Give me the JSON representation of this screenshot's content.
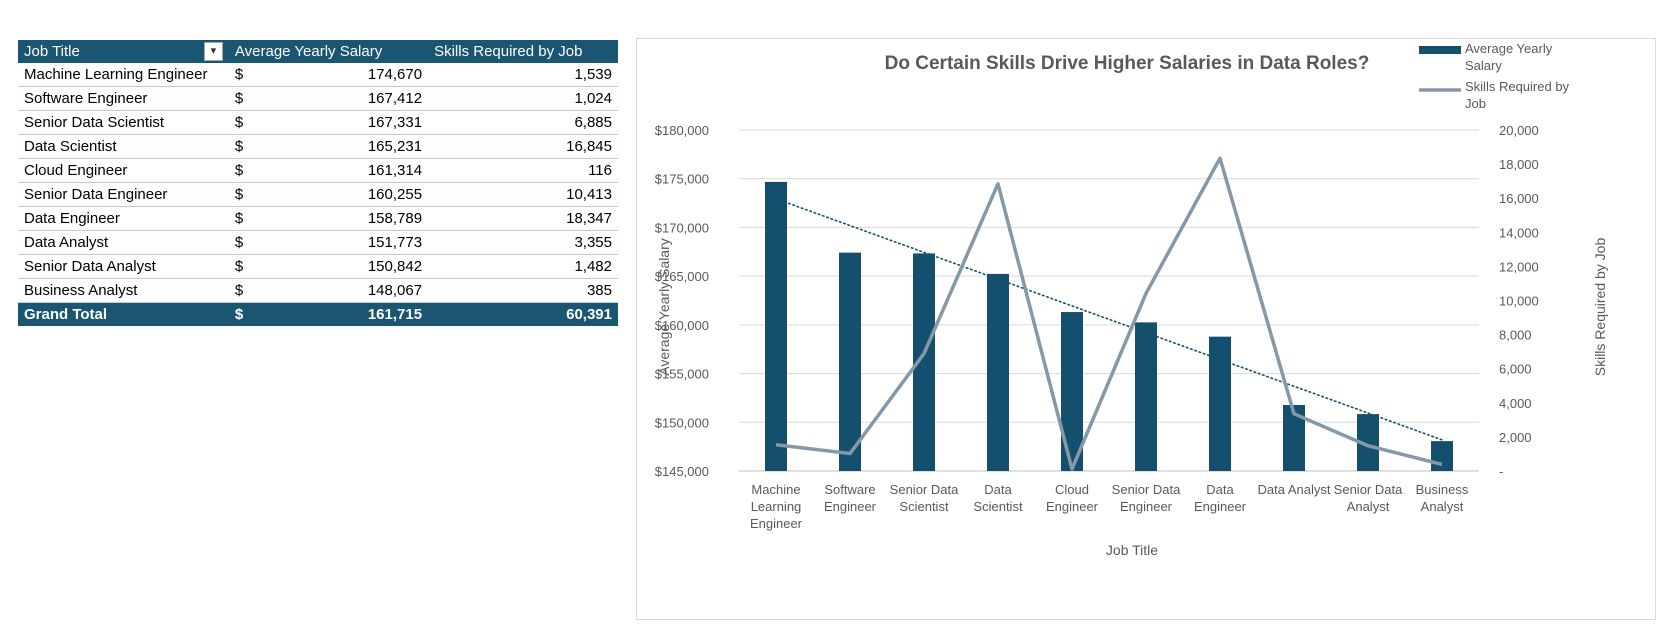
{
  "table": {
    "headers": [
      "Job Title",
      "Average Yearly Salary",
      "Skills Required by Job"
    ],
    "rows": [
      {
        "title": "Machine Learning Engineer",
        "currency": "$",
        "salary": "174,670",
        "skills": "1,539"
      },
      {
        "title": "Software Engineer",
        "currency": "$",
        "salary": "167,412",
        "skills": "1,024"
      },
      {
        "title": "Senior Data Scientist",
        "currency": "$",
        "salary": "167,331",
        "skills": "6,885"
      },
      {
        "title": "Data Scientist",
        "currency": "$",
        "salary": "165,231",
        "skills": "16,845"
      },
      {
        "title": "Cloud Engineer",
        "currency": "$",
        "salary": "161,314",
        "skills": "116"
      },
      {
        "title": "Senior Data Engineer",
        "currency": "$",
        "salary": "160,255",
        "skills": "10,413"
      },
      {
        "title": "Data Engineer",
        "currency": "$",
        "salary": "158,789",
        "skills": "18,347"
      },
      {
        "title": "Data Analyst",
        "currency": "$",
        "salary": "151,773",
        "skills": "3,355"
      },
      {
        "title": "Senior Data Analyst",
        "currency": "$",
        "salary": "150,842",
        "skills": "1,482"
      },
      {
        "title": "Business Analyst",
        "currency": "$",
        "salary": "148,067",
        "skills": "385"
      }
    ],
    "total": {
      "title": "Grand Total",
      "currency": "$",
      "salary": "161,715",
      "skills": "60,391"
    }
  },
  "chart_data": {
    "type": "bar",
    "title": "Do Certain Skills Drive Higher Salaries in Data Roles?",
    "xlabel": "Job Title",
    "ylabel": "Average Yearly Salary",
    "y2label": "Skills Required by Job",
    "categories": [
      [
        "Machine",
        "Learning",
        "Engineer"
      ],
      [
        "Software",
        "Engineer"
      ],
      [
        "Senior Data",
        "Scientist"
      ],
      [
        "Data",
        "Scientist"
      ],
      [
        "Cloud",
        "Engineer"
      ],
      [
        "Senior Data",
        "Engineer"
      ],
      [
        "Data",
        "Engineer"
      ],
      [
        "Data Analyst"
      ],
      [
        "Senior Data",
        "Analyst"
      ],
      [
        "Business",
        "Analyst"
      ]
    ],
    "series": [
      {
        "name": "Average Yearly Salary",
        "kind": "bar",
        "axis": "left",
        "color": "#14506e",
        "values": [
          174670,
          167412,
          167331,
          165231,
          161314,
          160255,
          158789,
          151773,
          150842,
          148067
        ]
      },
      {
        "name": "Skills Required by Job",
        "kind": "line",
        "axis": "right",
        "color": "#8598a9",
        "values": [
          1539,
          1024,
          6885,
          16845,
          116,
          10413,
          18347,
          3355,
          1482,
          385
        ]
      }
    ],
    "trendline": {
      "series": "Average Yearly Salary",
      "type": "linear",
      "style": "dotted",
      "color": "#14506e"
    },
    "ylim": [
      145000,
      180000
    ],
    "y2lim": [
      0,
      20000
    ],
    "yticks": [
      "$145,000",
      "$150,000",
      "$155,000",
      "$160,000",
      "$165,000",
      "$170,000",
      "$175,000",
      "$180,000"
    ],
    "y2ticks": [
      "-",
      "2,000",
      "4,000",
      "6,000",
      "8,000",
      "10,000",
      "12,000",
      "14,000",
      "16,000",
      "18,000",
      "20,000"
    ],
    "legend": {
      "position": "top-right",
      "entries": [
        [
          "Average Yearly",
          "Salary"
        ],
        [
          "Skills Required by",
          "Job"
        ]
      ]
    },
    "grid": true
  }
}
